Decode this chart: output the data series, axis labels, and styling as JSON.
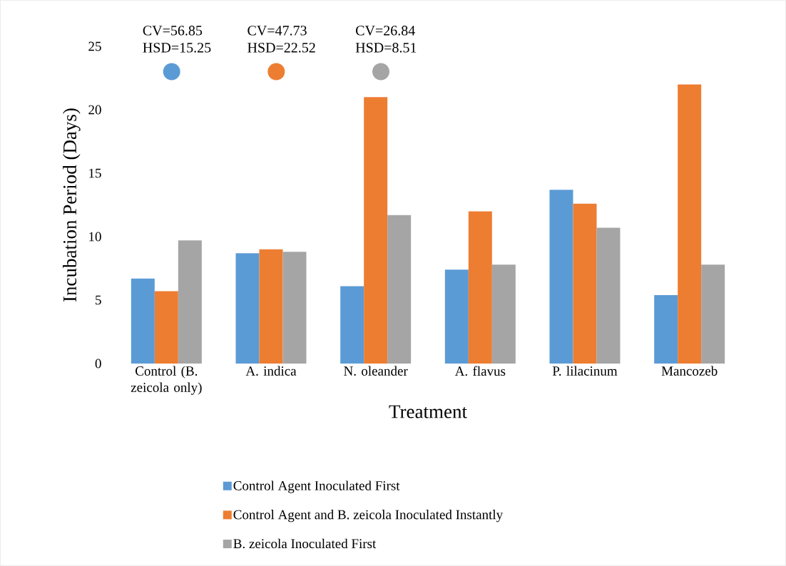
{
  "chart_data": {
    "type": "bar",
    "xlabel": "Treatment",
    "ylabel": "Incubation Period (Days)",
    "categories": [
      "Control (B. zeicola only)",
      "A. indica",
      "N. oleander",
      "A. flavus",
      "P. lilacinum",
      "Mancozeb"
    ],
    "series": [
      {
        "name": "Control Agent Inoculated First",
        "color": "#5b9bd5",
        "values": [
          6.7,
          8.7,
          6.1,
          7.4,
          13.7,
          5.4
        ]
      },
      {
        "name": "Control Agent and B. zeicola Inoculated Instantly",
        "color": "#ed7d31",
        "values": [
          5.7,
          9.0,
          21.0,
          12.0,
          12.6,
          22.0
        ]
      },
      {
        "name": "B. zeicola Inoculated First",
        "color": "#a5a5a5",
        "values": [
          9.7,
          8.8,
          11.7,
          7.8,
          10.7,
          7.8
        ]
      }
    ],
    "ylim": [
      0,
      25
    ],
    "yticks": [
      0,
      5,
      10,
      15,
      20,
      25
    ],
    "grid": false,
    "legend": "bottom",
    "annotations": [
      "CV=56.85",
      "HSD=15.25",
      "CV=47.73",
      "HSD=22.52",
      "CV=26.84",
      "HSD=8.51"
    ]
  }
}
